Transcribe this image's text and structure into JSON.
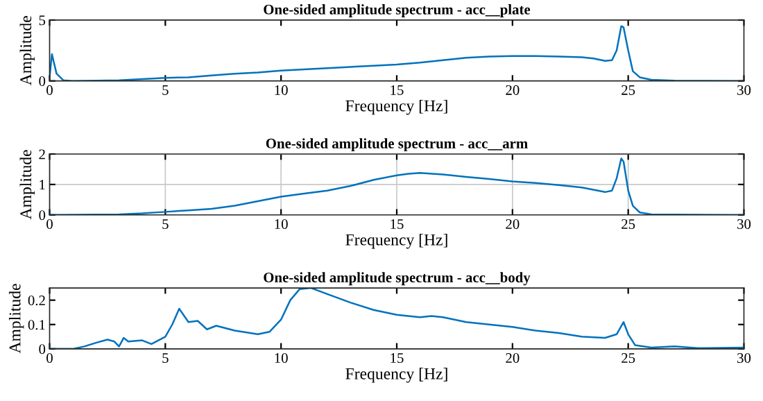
{
  "chart_data": [
    {
      "type": "line",
      "title": "One-sided amplitude spectrum - acc__plate",
      "xlabel": "Frequency [Hz]",
      "ylabel": "Amplitude",
      "xlim": [
        0,
        30
      ],
      "xticks": [
        0,
        5,
        10,
        15,
        20,
        25,
        30
      ],
      "ylim": [
        0,
        5
      ],
      "yticks": [
        0,
        5
      ],
      "grid": false,
      "x": [
        0,
        0.1,
        0.3,
        0.6,
        1,
        2,
        3,
        4,
        5,
        6,
        7,
        8,
        9,
        10,
        11,
        12,
        13,
        14,
        15,
        16,
        17,
        18,
        19,
        20,
        21,
        22,
        23,
        23.5,
        24,
        24.3,
        24.5,
        24.7,
        24.8,
        25,
        25.2,
        25.5,
        26,
        27,
        30
      ],
      "series": [
        {
          "color": "#0072bd",
          "values": [
            0.3,
            2.2,
            0.6,
            0.05,
            0,
            0.02,
            0.05,
            0.15,
            0.25,
            0.3,
            0.45,
            0.6,
            0.7,
            0.85,
            0.95,
            1.05,
            1.15,
            1.25,
            1.35,
            1.5,
            1.7,
            1.9,
            2.0,
            2.05,
            2.05,
            2.0,
            1.95,
            1.85,
            1.65,
            1.7,
            2.5,
            4.5,
            4.4,
            2.5,
            0.8,
            0.3,
            0.1,
            0.02,
            0
          ]
        }
      ]
    },
    {
      "type": "line",
      "title": "One-sided amplitude spectrum - acc__arm",
      "xlabel": "Frequency [Hz]",
      "ylabel": "Amplitude",
      "xlim": [
        0,
        30
      ],
      "xticks": [
        0,
        5,
        10,
        15,
        20,
        25,
        30
      ],
      "ylim": [
        0,
        2
      ],
      "yticks": [
        0,
        1,
        2
      ],
      "grid": true,
      "x": [
        0,
        2,
        3,
        4,
        5,
        6,
        7,
        8,
        9,
        10,
        11,
        12,
        13,
        14,
        15,
        15.5,
        16,
        17,
        18,
        19,
        20,
        21,
        22,
        23,
        24,
        24.3,
        24.5,
        24.7,
        24.8,
        25,
        25.2,
        25.5,
        26,
        27,
        30
      ],
      "series": [
        {
          "color": "#0072bd",
          "values": [
            0,
            0.01,
            0.02,
            0.05,
            0.1,
            0.15,
            0.2,
            0.3,
            0.45,
            0.6,
            0.7,
            0.8,
            0.95,
            1.15,
            1.3,
            1.35,
            1.38,
            1.33,
            1.25,
            1.18,
            1.1,
            1.05,
            0.98,
            0.9,
            0.75,
            0.8,
            1.2,
            1.85,
            1.75,
            0.8,
            0.3,
            0.08,
            0.02,
            0.01,
            0
          ]
        }
      ]
    },
    {
      "type": "line",
      "title": "One-sided amplitude spectrum - acc__body",
      "xlabel": "Frequency [Hz]",
      "ylabel": "Amplitude",
      "xlim": [
        0,
        30
      ],
      "xticks": [
        0,
        5,
        10,
        15,
        20,
        25,
        30
      ],
      "ylim": [
        0,
        0.25
      ],
      "yticks": [
        0,
        0.1,
        0.2
      ],
      "grid": false,
      "x": [
        0,
        1,
        1.5,
        2,
        2.5,
        2.8,
        3,
        3.2,
        3.4,
        4,
        4.4,
        5,
        5.3,
        5.6,
        6,
        6.4,
        6.8,
        7.2,
        8,
        9,
        9.5,
        10,
        10.4,
        10.8,
        11.3,
        12,
        13,
        14,
        15,
        16,
        16.5,
        17,
        18,
        19,
        20,
        21,
        22,
        23,
        24,
        24.5,
        24.8,
        25,
        25.3,
        26,
        27,
        28,
        30
      ],
      "series": [
        {
          "color": "#0072bd",
          "values": [
            0,
            0,
            0.01,
            0.025,
            0.038,
            0.03,
            0.01,
            0.045,
            0.03,
            0.035,
            0.02,
            0.05,
            0.1,
            0.165,
            0.11,
            0.115,
            0.08,
            0.095,
            0.075,
            0.06,
            0.07,
            0.12,
            0.2,
            0.245,
            0.25,
            0.225,
            0.19,
            0.16,
            0.14,
            0.13,
            0.135,
            0.13,
            0.11,
            0.1,
            0.09,
            0.075,
            0.065,
            0.05,
            0.045,
            0.06,
            0.11,
            0.06,
            0.015,
            0.005,
            0.01,
            0.003,
            0.005
          ]
        }
      ]
    }
  ]
}
